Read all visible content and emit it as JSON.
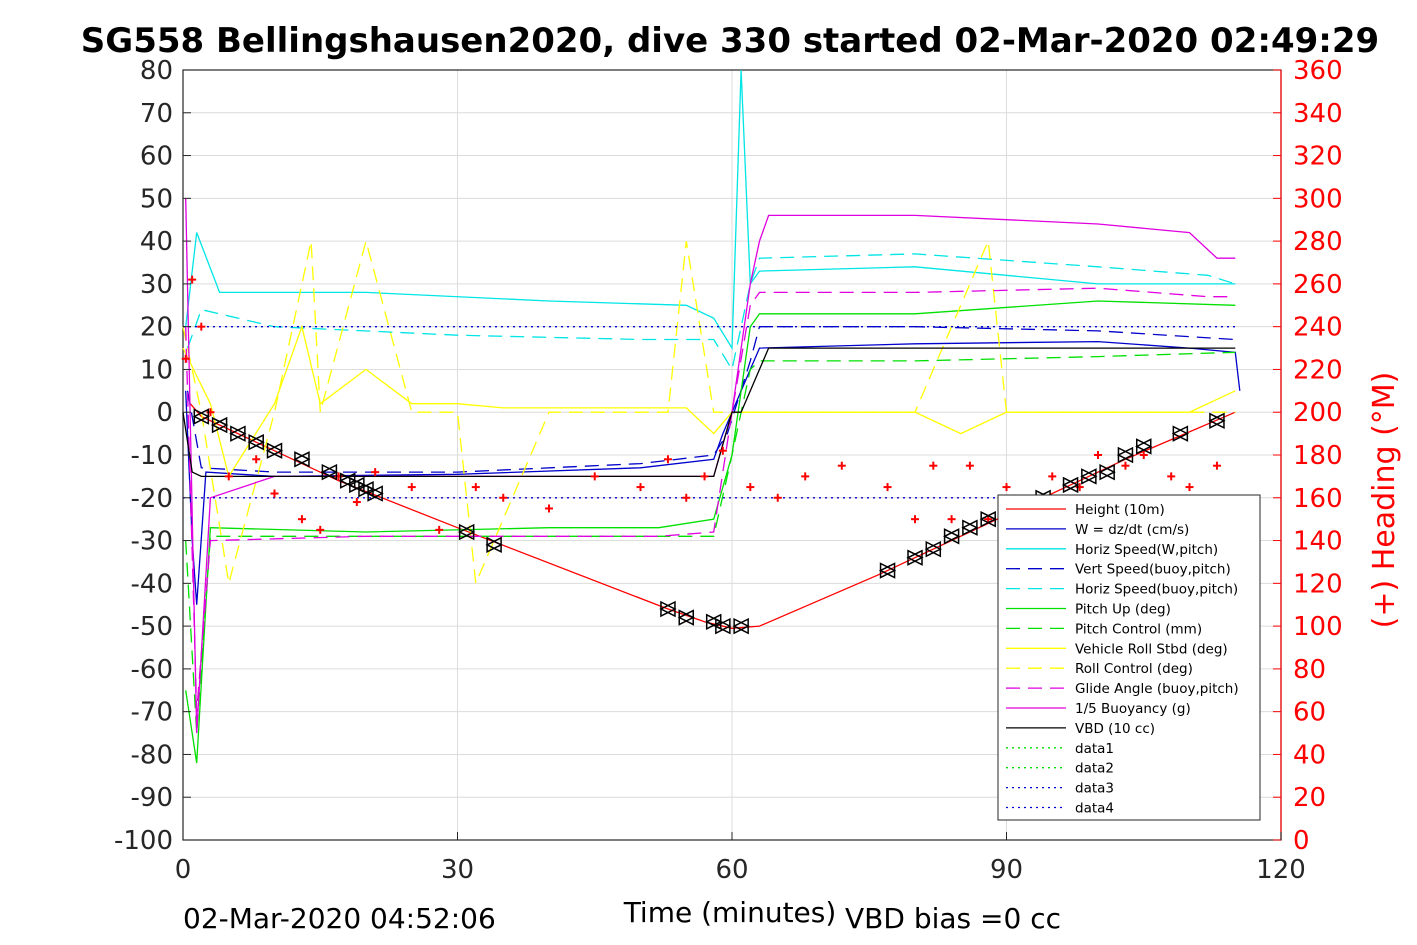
{
  "chart_data": {
    "type": "line",
    "title": "SG558 Bellingshausen2020, dive 330 started 02-Mar-2020 02:49:29",
    "xlabel": "Time (minutes)",
    "ylabel_right": "(+) Heading (°M)",
    "xlim": [
      0,
      120
    ],
    "ylim": [
      -100,
      80
    ],
    "y2lim": [
      0,
      360
    ],
    "x_ticks": [
      "0",
      "30",
      "60",
      "90",
      "120"
    ],
    "y_ticks": [
      "80",
      "70",
      "60",
      "50",
      "40",
      "30",
      "20",
      "10",
      "0",
      "-10",
      "-20",
      "-30",
      "-40",
      "-50",
      "-60",
      "-70",
      "-80",
      "-90",
      "-100"
    ],
    "y2_ticks": [
      "360",
      "340",
      "320",
      "300",
      "280",
      "260",
      "240",
      "220",
      "200",
      "180",
      "160",
      "140",
      "120",
      "100",
      "80",
      "60",
      "40",
      "20",
      "0"
    ],
    "grid": true,
    "legend_position": "bottom-right",
    "footer_left": "02-Mar-2020 04:52:06",
    "footer_right": "VBD bias =0 cc",
    "series": [
      {
        "name": "Height (10m)",
        "color": "#ff0000",
        "style": "solid",
        "axis": "left",
        "x": [
          0.8,
          2,
          17,
          30,
          53,
          57,
          60,
          63,
          76,
          88,
          103,
          115
        ],
        "y": [
          2,
          -1,
          -16,
          -27,
          -46,
          -49,
          -50.5,
          -50,
          -38,
          -26,
          -11,
          0
        ]
      },
      {
        "name": "W = dz/dt (cm/s)",
        "color": "#0000cc",
        "style": "solid",
        "axis": "left",
        "x": [
          0.3,
          1,
          1.5,
          2.5,
          10,
          30,
          50,
          58,
          59,
          62,
          63,
          80,
          100,
          110,
          115,
          115.5
        ],
        "y": [
          5,
          -30,
          -45,
          -14,
          -15,
          -14.5,
          -13,
          -11,
          -5,
          10,
          15,
          16,
          16.5,
          15,
          14,
          5
        ]
      },
      {
        "name": "Horiz Speed(W,pitch)",
        "color": "#00e5e5",
        "style": "solid",
        "axis": "left",
        "x": [
          0.3,
          1.5,
          4,
          20,
          40,
          55,
          58,
          60,
          61,
          62,
          63,
          80,
          100,
          115
        ],
        "y": [
          20,
          42,
          28,
          28,
          26,
          25,
          22,
          15,
          80,
          30,
          33,
          34,
          30,
          30
        ]
      },
      {
        "name": "Vert Speed(buoy,pitch)",
        "color": "#0000cc",
        "style": "dash",
        "axis": "left",
        "x": [
          0.5,
          2,
          10,
          30,
          50,
          58,
          59.5,
          62,
          63,
          80,
          100,
          115
        ],
        "y": [
          5,
          -13,
          -14,
          -14,
          -12,
          -10,
          -5,
          12,
          20,
          20,
          19,
          17
        ]
      },
      {
        "name": "Horiz Speed(buoy,pitch)",
        "color": "#00e5e5",
        "style": "dash",
        "axis": "left",
        "x": [
          0.5,
          2,
          10,
          30,
          50,
          58,
          60,
          62,
          63,
          80,
          100,
          112,
          115
        ],
        "y": [
          15,
          24,
          20,
          18,
          17,
          17,
          10,
          30,
          36,
          37,
          34,
          32,
          30
        ]
      },
      {
        "name": "Pitch Up (deg)",
        "color": "#00e000",
        "style": "solid",
        "axis": "left",
        "x": [
          0.3,
          1.5,
          3,
          20,
          40,
          52,
          58,
          60,
          62,
          63,
          80,
          100,
          115
        ],
        "y": [
          -65,
          -82,
          -27,
          -28,
          -27,
          -27,
          -25,
          -10,
          20,
          23,
          23,
          26,
          25
        ]
      },
      {
        "name": "Pitch Control (mm)",
        "color": "#00e000",
        "style": "dash",
        "axis": "left",
        "x": [
          0.3,
          1.5,
          3,
          20,
          40,
          58,
          60,
          62,
          63,
          80,
          100,
          115
        ],
        "y": [
          -30,
          -75,
          -29,
          -29,
          -29,
          -29,
          -10,
          10,
          12,
          12,
          13,
          14
        ]
      },
      {
        "name": "Vehicle Roll Stbd (deg)",
        "color": "#ffff00",
        "style": "solid",
        "axis": "left",
        "x": [
          0,
          3,
          5,
          10,
          13,
          15,
          20,
          25,
          30,
          35,
          45,
          55,
          58,
          60,
          65,
          80,
          85,
          90,
          100,
          110,
          115
        ],
        "y": [
          15,
          2,
          -15,
          2,
          20,
          2,
          10,
          2,
          2,
          1,
          1,
          1,
          -5,
          0,
          0,
          0,
          -5,
          0,
          0,
          0,
          5
        ]
      },
      {
        "name": "Roll Control (deg)",
        "color": "#ffff00",
        "style": "dash",
        "axis": "left",
        "x": [
          0,
          2,
          5,
          10,
          14,
          15,
          20,
          25,
          30,
          32,
          40,
          53,
          55,
          58,
          60,
          70,
          80,
          88,
          90,
          100,
          110,
          115
        ],
        "y": [
          20,
          0,
          -40,
          0,
          40,
          0,
          40,
          0,
          0,
          -40,
          0,
          0,
          40,
          0,
          0,
          0,
          0,
          40,
          0,
          0,
          0,
          0
        ]
      },
      {
        "name": "Glide Angle (buoy,pitch)",
        "color": "#e000e0",
        "style": "dash",
        "axis": "left",
        "x": [
          0.3,
          1.5,
          3,
          20,
          40,
          52,
          58,
          60,
          62,
          63,
          80,
          100,
          112,
          115
        ],
        "y": [
          20,
          -70,
          -30,
          -29,
          -29,
          -29,
          -28,
          0,
          25,
          28,
          28,
          29,
          27,
          27
        ]
      },
      {
        "name": "1/5 Buoyancy (g)",
        "color": "#e000e0",
        "style": "solid",
        "axis": "left",
        "x": [
          0.3,
          1.5,
          3,
          10,
          30,
          50,
          58,
          60,
          62,
          63,
          64,
          80,
          100,
          110,
          113,
          115
        ],
        "y": [
          50,
          -75,
          -20,
          -15,
          -15,
          -15,
          -15,
          0,
          30,
          40,
          46,
          46,
          44,
          42,
          36,
          36
        ]
      },
      {
        "name": "VBD (10 cc)",
        "color": "#000000",
        "style": "solid",
        "axis": "left",
        "x": [
          0,
          1,
          2,
          30,
          58,
          60,
          61,
          63,
          64,
          80,
          100,
          115
        ],
        "y": [
          0,
          -14,
          -15,
          -15,
          -15,
          0,
          0,
          10,
          15,
          15,
          15,
          15
        ]
      },
      {
        "name": "data1",
        "color": "#00e000",
        "style": "dot",
        "axis": "left",
        "x": [],
        "y": []
      },
      {
        "name": "data2",
        "color": "#00e000",
        "style": "dot",
        "axis": "left",
        "x": [],
        "y": []
      },
      {
        "name": "data3",
        "color": "#0000cc",
        "style": "dot",
        "axis": "left",
        "x": [
          0,
          115
        ],
        "y": [
          20,
          20
        ]
      },
      {
        "name": "data4",
        "color": "#0000cc",
        "style": "dot",
        "axis": "left",
        "x": [
          0,
          115
        ],
        "y": [
          -20,
          -20
        ]
      }
    ],
    "heading": {
      "name": "Heading (°M)",
      "color": "#ff0000",
      "marker": "+",
      "axis": "right",
      "x": [
        0.3,
        1,
        2,
        3,
        5,
        8,
        10,
        13,
        15,
        17,
        19,
        21,
        25,
        28,
        32,
        35,
        40,
        45,
        50,
        53,
        55,
        57,
        59,
        62,
        65,
        68,
        72,
        77,
        80,
        82,
        84,
        86,
        88,
        90,
        92,
        95,
        98,
        100,
        103,
        105,
        108,
        110,
        113,
        115
      ],
      "y": [
        225,
        262,
        240,
        200,
        170,
        178,
        162,
        150,
        145,
        170,
        158,
        172,
        165,
        145,
        165,
        160,
        155,
        170,
        165,
        178,
        160,
        170,
        182,
        165,
        160,
        170,
        175,
        165,
        150,
        175,
        150,
        175,
        150,
        165,
        155,
        170,
        165,
        180,
        175,
        180,
        170,
        165,
        175,
        150
      ]
    },
    "markers": {
      "name": "Dive markers",
      "color": "#000000",
      "axis": "left",
      "x": [
        2,
        4,
        6,
        8,
        10,
        13,
        16,
        18,
        19,
        20,
        21,
        31,
        34,
        53,
        55,
        58,
        59,
        61,
        77,
        80,
        82,
        84,
        86,
        88,
        94,
        97,
        99,
        101,
        103,
        105,
        109,
        113
      ],
      "y": [
        -1,
        -3,
        -5,
        -7,
        -9,
        -11,
        -14,
        -16,
        -17,
        -18,
        -19,
        -28,
        -31,
        -46,
        -48,
        -49,
        -50,
        -50,
        -37,
        -34,
        -32,
        -29,
        -27,
        -25,
        -20,
        -17,
        -15,
        -14,
        -10,
        -8,
        -5,
        -2
      ]
    }
  }
}
